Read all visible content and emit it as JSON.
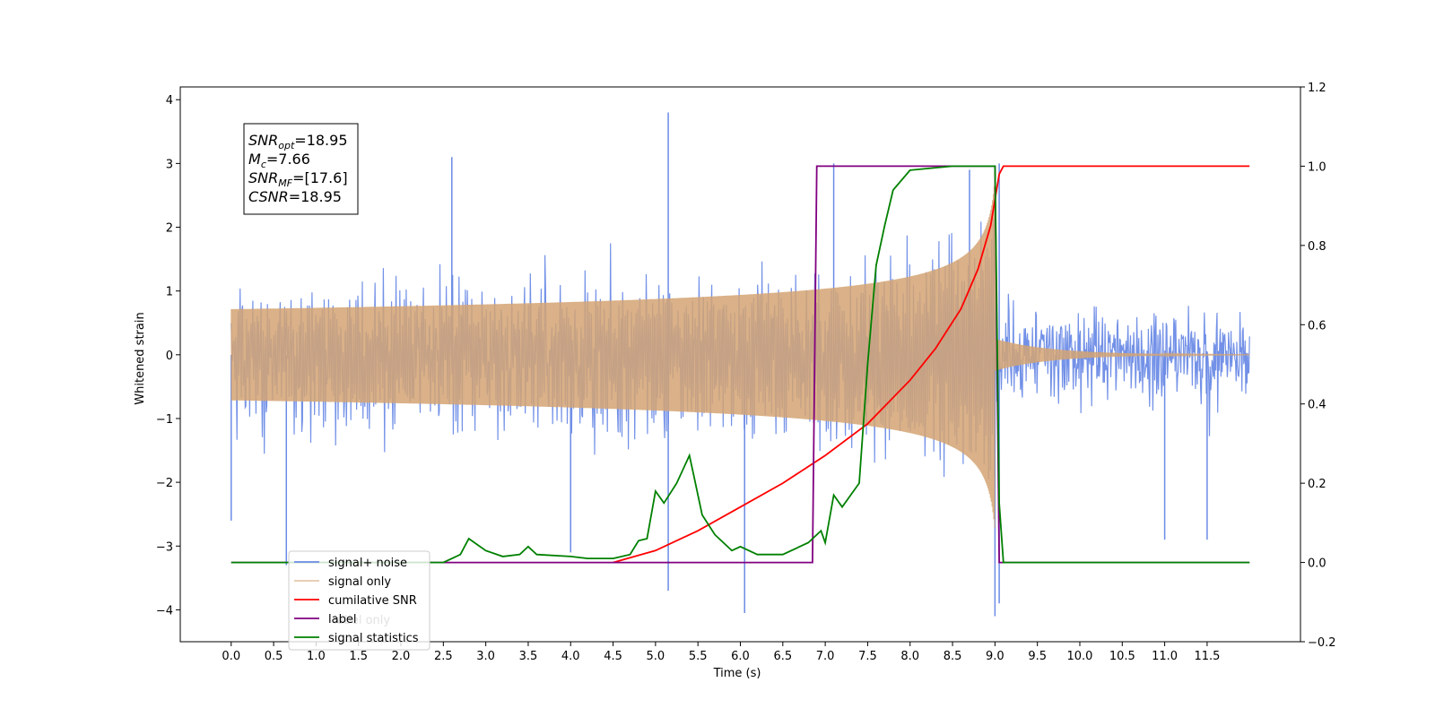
{
  "chart_data": {
    "type": "line",
    "xlabel": "Time (s)",
    "ylabel": "Whitened strain",
    "ylabel_right": "",
    "xlim": [
      -0.6,
      12.6
    ],
    "ylim": [
      -4.5,
      4.2
    ],
    "ylim_right": [
      -0.2,
      1.2
    ],
    "x_ticks": [
      "0.0",
      "0.5",
      "1.0",
      "1.5",
      "2.0",
      "2.5",
      "3.0",
      "3.5",
      "4.0",
      "4.5",
      "5.0",
      "5.5",
      "6.0",
      "6.5",
      "7.0",
      "7.5",
      "8.0",
      "8.5",
      "9.0",
      "9.5",
      "10.0",
      "10.5",
      "11.0",
      "11.5"
    ],
    "y_ticks": [
      "−4",
      "−3",
      "−2",
      "−1",
      "0",
      "1",
      "2",
      "3",
      "4"
    ],
    "y_ticks_right": [
      "−0.2",
      "0.0",
      "0.2",
      "0.4",
      "0.6",
      "0.8",
      "1.0",
      "1.2"
    ],
    "grid": false,
    "legend_position": "lower-left",
    "colors": {
      "signal_noise": "#6b8be6",
      "signal_only": "#d4a373",
      "cumulative_snr": "#ff0000",
      "label": "#800080",
      "signal_statistics": "#008000"
    },
    "series": [
      {
        "name": "signal+ noise",
        "axis": "left",
        "x_range": [
          0.0,
          12.0
        ],
        "envelope_abs": 1.9,
        "notable_peaks": [
          {
            "x": 0.0,
            "y": -2.6
          },
          {
            "x": 0.65,
            "y": -3.3
          },
          {
            "x": 2.6,
            "y": 3.1
          },
          {
            "x": 4.0,
            "y": -3.1
          },
          {
            "x": 5.15,
            "y": 3.8
          },
          {
            "x": 5.15,
            "y": -3.7
          },
          {
            "x": 6.05,
            "y": -4.05
          },
          {
            "x": 7.1,
            "y": 3.0
          },
          {
            "x": 8.7,
            "y": 2.9
          },
          {
            "x": 9.0,
            "y": -4.1
          },
          {
            "x": 9.05,
            "y": 3.0
          },
          {
            "x": 9.05,
            "y": -3.9
          },
          {
            "x": 11.0,
            "y": -2.9
          },
          {
            "x": 11.5,
            "y": -2.9
          }
        ]
      },
      {
        "name": "signal only",
        "axis": "left",
        "x_range": [
          0.0,
          12.0
        ],
        "merger_time": 9.0,
        "peak_amplitude": 2.8
      },
      {
        "name": "cumilative SNR",
        "axis": "right",
        "x": [
          4.5,
          5.0,
          5.5,
          6.0,
          6.5,
          7.0,
          7.5,
          8.0,
          8.3,
          8.6,
          8.8,
          8.95,
          9.05,
          9.1,
          12.0
        ],
        "y": [
          0.0,
          0.03,
          0.08,
          0.14,
          0.2,
          0.27,
          0.35,
          0.46,
          0.54,
          0.64,
          0.74,
          0.85,
          0.98,
          1.0,
          1.0
        ]
      },
      {
        "name": "label",
        "axis": "right",
        "x": [
          0.0,
          6.85,
          6.9,
          9.0,
          9.05,
          12.0
        ],
        "y": [
          0.0,
          0.0,
          1.0,
          1.0,
          0.0,
          0.0
        ]
      },
      {
        "name": "signal statistics",
        "axis": "right",
        "x": [
          0.0,
          2.5,
          2.7,
          2.8,
          3.0,
          3.2,
          3.4,
          3.5,
          3.6,
          4.0,
          4.2,
          4.5,
          4.7,
          4.8,
          4.9,
          5.0,
          5.1,
          5.25,
          5.4,
          5.45,
          5.55,
          5.7,
          5.9,
          6.0,
          6.2,
          6.5,
          6.8,
          6.95,
          7.0,
          7.1,
          7.2,
          7.4,
          7.5,
          7.6,
          7.7,
          7.8,
          8.0,
          8.5,
          9.0,
          9.05,
          9.1,
          12.0
        ],
        "y": [
          0.0,
          0.0,
          0.02,
          0.06,
          0.03,
          0.015,
          0.02,
          0.04,
          0.02,
          0.015,
          0.01,
          0.01,
          0.02,
          0.055,
          0.06,
          0.18,
          0.15,
          0.2,
          0.27,
          0.22,
          0.12,
          0.07,
          0.03,
          0.04,
          0.02,
          0.02,
          0.05,
          0.08,
          0.05,
          0.17,
          0.14,
          0.2,
          0.5,
          0.75,
          0.85,
          0.94,
          0.99,
          1.0,
          1.0,
          0.15,
          0.0,
          0.0
        ]
      }
    ],
    "legend": [
      "signal+ noise",
      "signal only",
      "cumilative SNR",
      "label",
      "signal statistics"
    ],
    "annotation": {
      "lines": [
        {
          "sym": "SNR",
          "sub": "opt",
          "val": "=18.95"
        },
        {
          "sym": "M",
          "sub": "c",
          "val": "=7.66"
        },
        {
          "sym": "SNR",
          "sub": "MF",
          "val": "=[17.6]"
        },
        {
          "sym": "CSNR",
          "sub": "",
          "val": "=18.95"
        }
      ]
    },
    "legend_overlap_text": "label only"
  }
}
